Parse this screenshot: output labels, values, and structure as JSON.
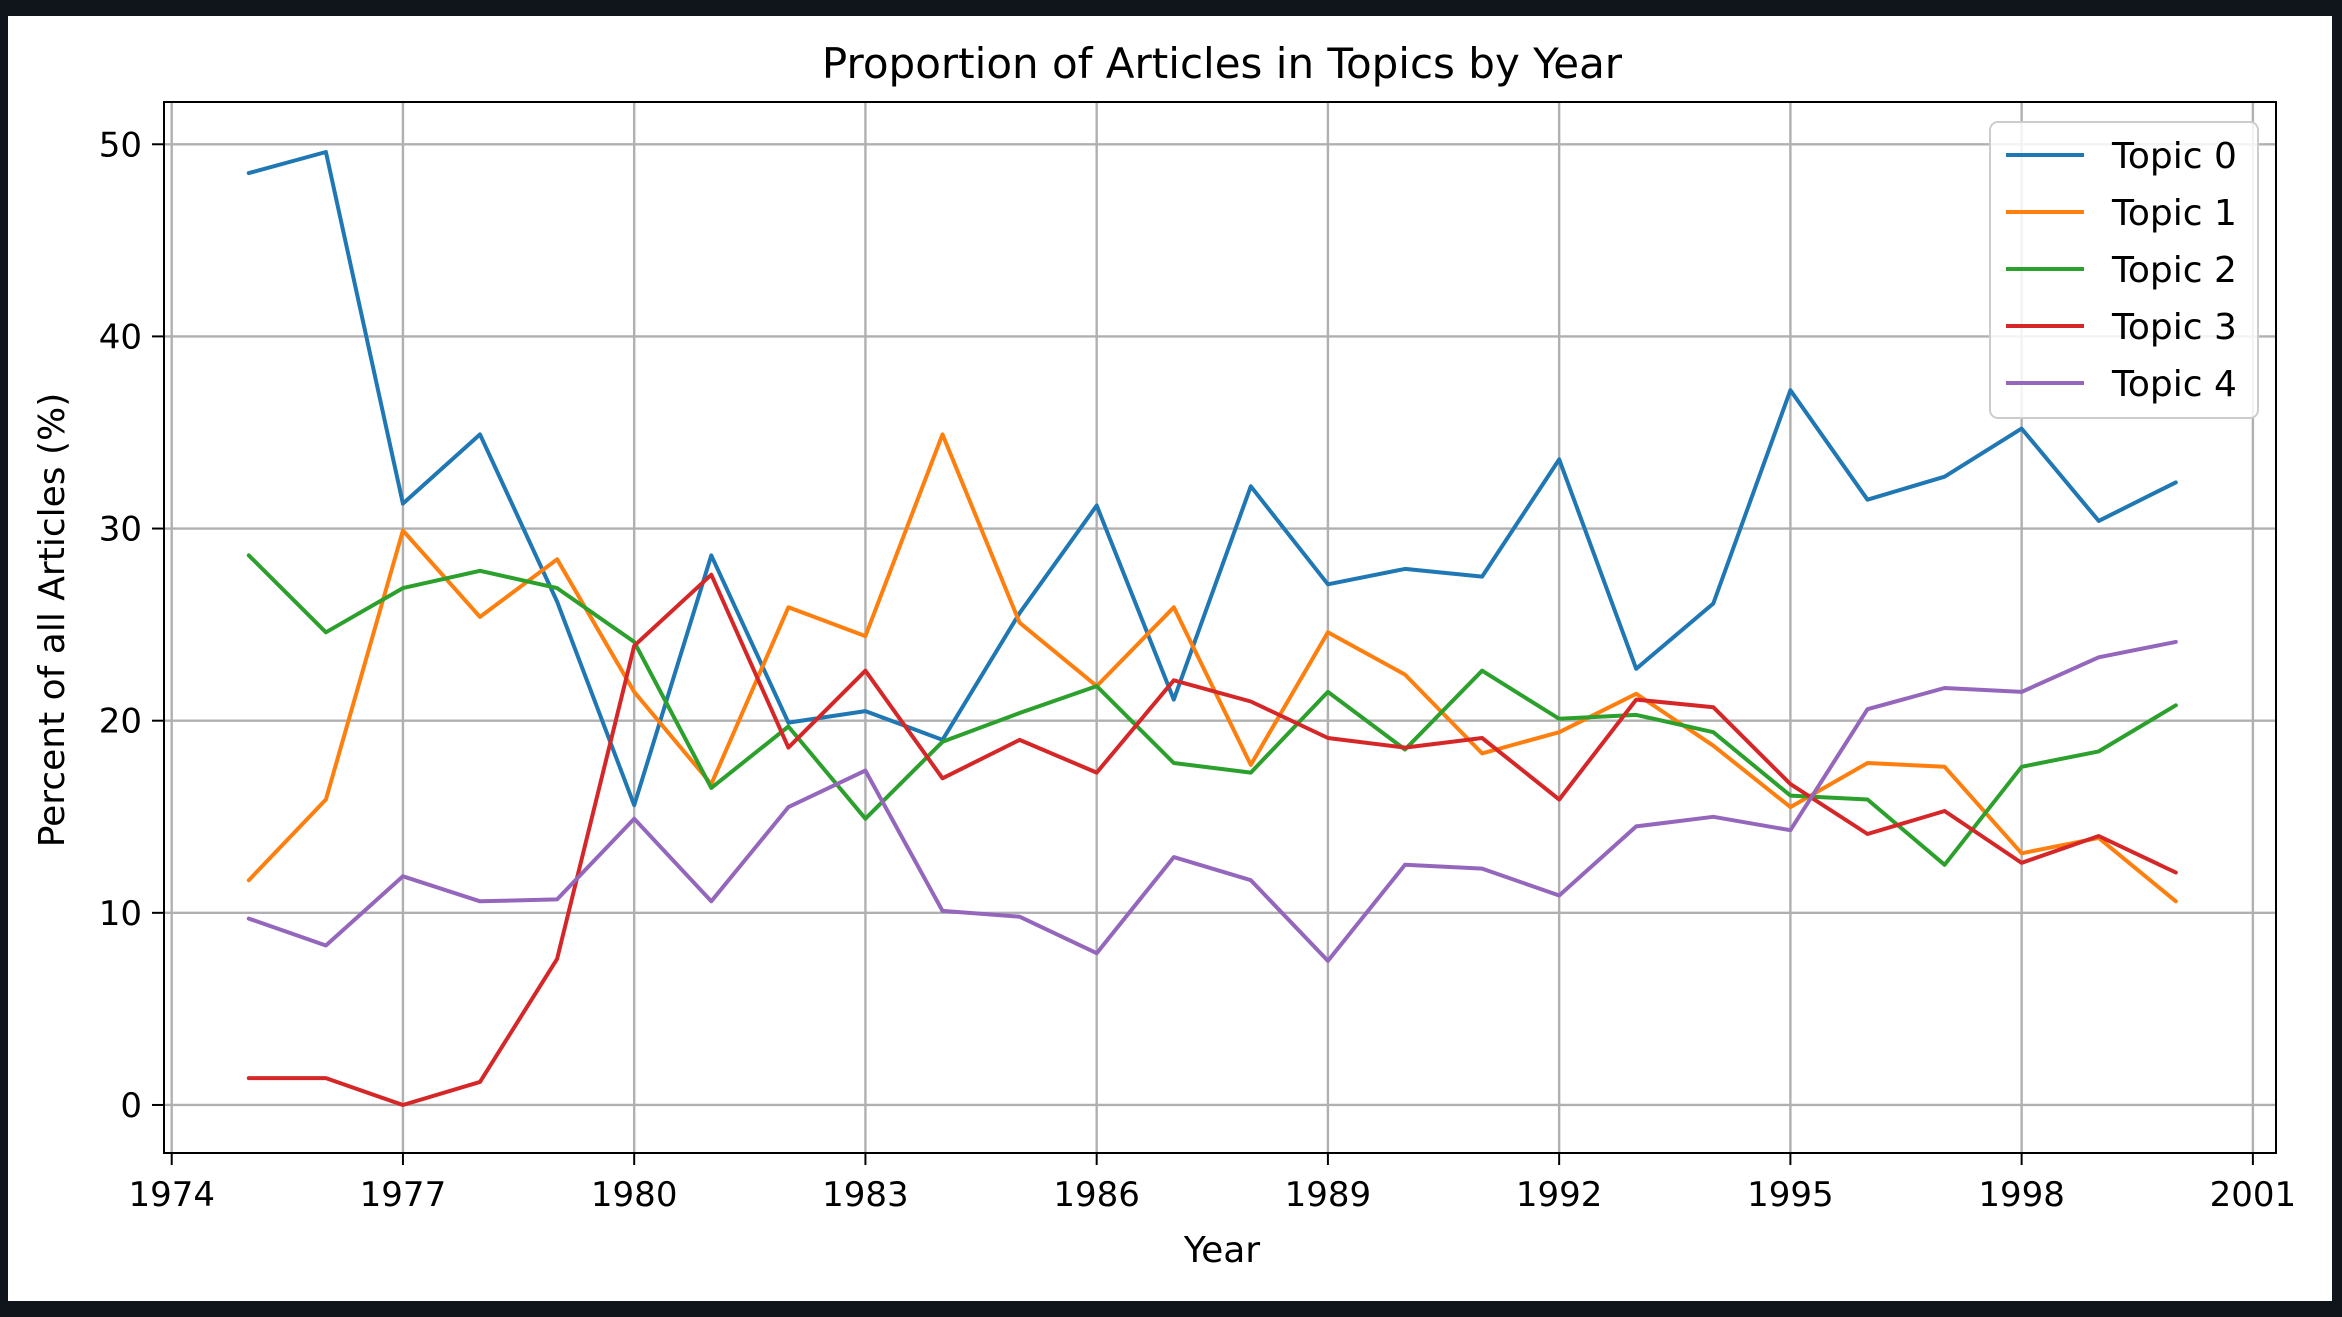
{
  "chart_data": {
    "type": "line",
    "title": "Proportion of Articles in Topics by Year",
    "xlabel": "Year",
    "ylabel": "Percent of all Articles (%)",
    "xlim": [
      1973.9,
      2001.3
    ],
    "ylim": [
      -2.5,
      52.2
    ],
    "xticks": [
      1974,
      1977,
      1980,
      1983,
      1986,
      1989,
      1992,
      1995,
      1998,
      2001
    ],
    "yticks": [
      0,
      10,
      20,
      30,
      40,
      50
    ],
    "grid": true,
    "legend_position": "top-right",
    "x": [
      1975,
      1976,
      1977,
      1978,
      1979,
      1980,
      1981,
      1982,
      1983,
      1984,
      1985,
      1986,
      1987,
      1988,
      1989,
      1990,
      1991,
      1992,
      1993,
      1994,
      1995,
      1996,
      1997,
      1998,
      1999,
      2000
    ],
    "series": [
      {
        "name": "Topic 0",
        "color": "#1f77b4",
        "values": [
          48.5,
          49.6,
          31.3,
          34.9,
          26.2,
          15.6,
          28.6,
          19.9,
          20.5,
          19.0,
          25.6,
          31.2,
          21.1,
          32.2,
          27.1,
          27.9,
          27.5,
          33.6,
          22.7,
          26.1,
          37.2,
          31.5,
          32.7,
          35.2,
          30.4,
          32.4
        ]
      },
      {
        "name": "Topic 1",
        "color": "#ff7f0e",
        "values": [
          11.7,
          15.9,
          29.9,
          25.4,
          28.4,
          21.5,
          16.7,
          25.9,
          24.4,
          34.9,
          25.1,
          21.8,
          25.9,
          17.7,
          24.6,
          22.4,
          18.3,
          19.4,
          21.4,
          18.7,
          15.5,
          17.8,
          17.6,
          13.1,
          13.9,
          10.6
        ]
      },
      {
        "name": "Topic 2",
        "color": "#2ca02c",
        "values": [
          28.6,
          24.6,
          26.9,
          27.8,
          26.9,
          24.1,
          16.5,
          19.7,
          14.9,
          18.9,
          20.4,
          21.8,
          17.8,
          17.3,
          21.5,
          18.5,
          22.6,
          20.1,
          20.3,
          19.4,
          16.1,
          15.9,
          12.5,
          17.6,
          18.4,
          20.8
        ]
      },
      {
        "name": "Topic 3",
        "color": "#d62728",
        "values": [
          1.4,
          1.4,
          0.0,
          1.2,
          7.6,
          23.9,
          27.6,
          18.6,
          22.6,
          17.0,
          19.0,
          17.3,
          22.1,
          21.0,
          19.1,
          18.6,
          19.1,
          15.9,
          21.1,
          20.7,
          16.7,
          14.1,
          15.3,
          12.6,
          14.0,
          12.1
        ]
      },
      {
        "name": "Topic 4",
        "color": "#9467bd",
        "values": [
          9.7,
          8.3,
          11.9,
          10.6,
          10.7,
          14.9,
          10.6,
          15.5,
          17.4,
          10.1,
          9.8,
          7.9,
          12.9,
          11.7,
          7.5,
          12.5,
          12.3,
          10.9,
          14.5,
          15.0,
          14.3,
          20.6,
          21.7,
          21.5,
          23.3,
          24.1
        ]
      }
    ]
  }
}
